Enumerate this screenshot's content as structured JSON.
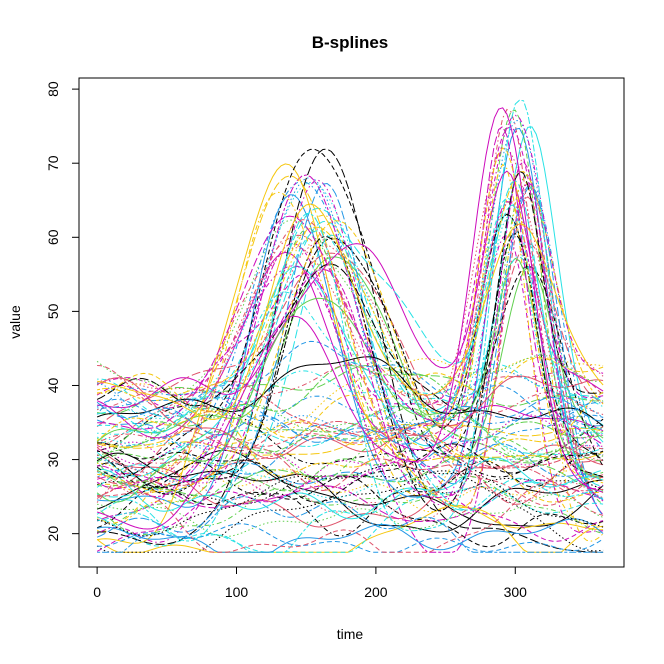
{
  "chart_data": {
    "type": "line",
    "title": "B-splines",
    "xlabel": "time",
    "ylabel": "value",
    "xlim": [
      -13,
      378
    ],
    "ylim": [
      15.5,
      81.5
    ],
    "x_ticks": [
      "0",
      "100",
      "200",
      "300"
    ],
    "x_tick_values": [
      0,
      100,
      200,
      300
    ],
    "y_ticks": [
      "20",
      "30",
      "40",
      "50",
      "60",
      "70",
      "80"
    ],
    "y_tick_values": [
      20,
      30,
      40,
      50,
      60,
      70,
      80
    ],
    "x_range": [
      0,
      365
    ],
    "series_count": 100,
    "colors": [
      "#000000",
      "#DF536B",
      "#61D04F",
      "#2297E6",
      "#28E2E5",
      "#CD0BBC",
      "#F5C710",
      "#9E9E9E"
    ],
    "line_styles": [
      "solid",
      "dashed",
      "dotted",
      "dashdot",
      "longdash",
      "twodash"
    ],
    "grid": false,
    "legend": "none"
  }
}
